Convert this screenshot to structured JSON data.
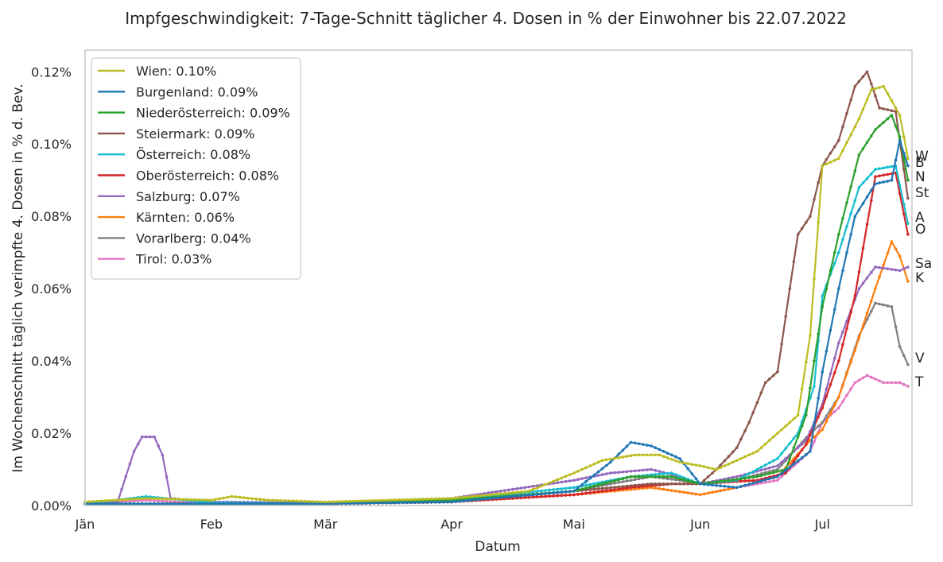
{
  "chart_data": {
    "type": "line",
    "title": "Impfgeschwindigkeit: 7-Tage-Schnitt täglicher 4. Dosen in % der Einwohner bis 22.07.2022",
    "xlabel": "Datum",
    "ylabel": "Im Wochenschnitt täglich verimpfte 4. Dosen in % d. Bev.",
    "x_start": "2022-01-01",
    "x_end": "2022-07-22",
    "xlim": [
      "2022-01-01",
      "2022-07-23"
    ],
    "ylim": [
      0,
      0.126
    ],
    "x_ticks": [
      {
        "date": "2022-01-01",
        "label": "Jän"
      },
      {
        "date": "2022-02-01",
        "label": "Feb"
      },
      {
        "date": "2022-03-01",
        "label": "Mär"
      },
      {
        "date": "2022-04-01",
        "label": "Apr"
      },
      {
        "date": "2022-05-01",
        "label": "Mai"
      },
      {
        "date": "2022-06-01",
        "label": "Jun"
      },
      {
        "date": "2022-07-01",
        "label": "Jul"
      }
    ],
    "y_ticks": [
      {
        "value": 0.0,
        "label": "0.00%"
      },
      {
        "value": 0.02,
        "label": "0.02%"
      },
      {
        "value": 0.04,
        "label": "0.04%"
      },
      {
        "value": 0.06,
        "label": "0.06%"
      },
      {
        "value": 0.08,
        "label": "0.08%"
      },
      {
        "value": 0.1,
        "label": "0.10%"
      },
      {
        "value": 0.12,
        "label": "0.12%"
      }
    ],
    "grid": true,
    "legend_position": "top-left",
    "series": [
      {
        "legend": "Wien: 0.10%",
        "end_label": "W",
        "color": "#bcbd22",
        "points": [
          [
            "2022-01-01",
            0.001
          ],
          [
            "2022-01-16",
            0.002
          ],
          [
            "2022-02-01",
            0.0015
          ],
          [
            "2022-02-06",
            0.0025
          ],
          [
            "2022-02-15",
            0.0015
          ],
          [
            "2022-03-01",
            0.001
          ],
          [
            "2022-04-01",
            0.002
          ],
          [
            "2022-04-20",
            0.004
          ],
          [
            "2022-05-01",
            0.009
          ],
          [
            "2022-05-08",
            0.0125
          ],
          [
            "2022-05-16",
            0.014
          ],
          [
            "2022-05-22",
            0.014
          ],
          [
            "2022-05-27",
            0.012
          ],
          [
            "2022-06-01",
            0.011
          ],
          [
            "2022-06-05",
            0.01
          ],
          [
            "2022-06-10",
            0.0125
          ],
          [
            "2022-06-15",
            0.015
          ],
          [
            "2022-06-20",
            0.02
          ],
          [
            "2022-06-25",
            0.025
          ],
          [
            "2022-06-28",
            0.047
          ],
          [
            "2022-07-01",
            0.094
          ],
          [
            "2022-07-05",
            0.096
          ],
          [
            "2022-07-10",
            0.107
          ],
          [
            "2022-07-13",
            0.115
          ],
          [
            "2022-07-16",
            0.116
          ],
          [
            "2022-07-20",
            0.108
          ],
          [
            "2022-07-22",
            0.096
          ]
        ]
      },
      {
        "legend": "Burgenland: 0.09%",
        "end_label": "B",
        "color": "#1f77b4",
        "points": [
          [
            "2022-01-01",
            0.0005
          ],
          [
            "2022-03-01",
            0.0005
          ],
          [
            "2022-04-01",
            0.001
          ],
          [
            "2022-05-01",
            0.004
          ],
          [
            "2022-05-10",
            0.012
          ],
          [
            "2022-05-15",
            0.0175
          ],
          [
            "2022-05-20",
            0.0165
          ],
          [
            "2022-05-27",
            0.013
          ],
          [
            "2022-06-01",
            0.006
          ],
          [
            "2022-06-10",
            0.005
          ],
          [
            "2022-06-20",
            0.008
          ],
          [
            "2022-06-28",
            0.015
          ],
          [
            "2022-07-01",
            0.037
          ],
          [
            "2022-07-05",
            0.06
          ],
          [
            "2022-07-09",
            0.08
          ],
          [
            "2022-07-14",
            0.089
          ],
          [
            "2022-07-18",
            0.09
          ],
          [
            "2022-07-20",
            0.101
          ],
          [
            "2022-07-22",
            0.094
          ]
        ]
      },
      {
        "legend": "Niederösterreich: 0.09%",
        "end_label": "N",
        "color": "#2ca02c",
        "points": [
          [
            "2022-01-01",
            0.0005
          ],
          [
            "2022-03-01",
            0.0005
          ],
          [
            "2022-04-01",
            0.0015
          ],
          [
            "2022-05-01",
            0.004
          ],
          [
            "2022-05-15",
            0.008
          ],
          [
            "2022-05-25",
            0.008
          ],
          [
            "2022-06-01",
            0.006
          ],
          [
            "2022-06-15",
            0.008
          ],
          [
            "2022-06-22",
            0.01
          ],
          [
            "2022-06-27",
            0.025
          ],
          [
            "2022-07-01",
            0.055
          ],
          [
            "2022-07-05",
            0.075
          ],
          [
            "2022-07-10",
            0.097
          ],
          [
            "2022-07-14",
            0.104
          ],
          [
            "2022-07-18",
            0.108
          ],
          [
            "2022-07-20",
            0.102
          ],
          [
            "2022-07-22",
            0.09
          ]
        ]
      },
      {
        "legend": "Steiermark: 0.09%",
        "end_label": "St",
        "color": "#8c564b",
        "points": [
          [
            "2022-01-01",
            0.0005
          ],
          [
            "2022-03-01",
            0.0005
          ],
          [
            "2022-04-01",
            0.001
          ],
          [
            "2022-05-01",
            0.004
          ],
          [
            "2022-05-20",
            0.006
          ],
          [
            "2022-06-01",
            0.006
          ],
          [
            "2022-06-05",
            0.01
          ],
          [
            "2022-06-10",
            0.016
          ],
          [
            "2022-06-13",
            0.023
          ],
          [
            "2022-06-17",
            0.034
          ],
          [
            "2022-06-20",
            0.037
          ],
          [
            "2022-06-23",
            0.06
          ],
          [
            "2022-06-25",
            0.075
          ],
          [
            "2022-06-28",
            0.08
          ],
          [
            "2022-07-01",
            0.094
          ],
          [
            "2022-07-05",
            0.101
          ],
          [
            "2022-07-09",
            0.116
          ],
          [
            "2022-07-12",
            0.12
          ],
          [
            "2022-07-15",
            0.11
          ],
          [
            "2022-07-19",
            0.109
          ],
          [
            "2022-07-22",
            0.085
          ]
        ]
      },
      {
        "legend": "Österreich: 0.08%",
        "end_label": "A",
        "color": "#17becf",
        "points": [
          [
            "2022-01-01",
            0.0005
          ],
          [
            "2022-01-16",
            0.0025
          ],
          [
            "2022-02-01",
            0.0008
          ],
          [
            "2022-03-01",
            0.0005
          ],
          [
            "2022-04-01",
            0.0015
          ],
          [
            "2022-05-01",
            0.005
          ],
          [
            "2022-05-15",
            0.008
          ],
          [
            "2022-05-25",
            0.009
          ],
          [
            "2022-06-01",
            0.006
          ],
          [
            "2022-06-10",
            0.007
          ],
          [
            "2022-06-15",
            0.01
          ],
          [
            "2022-06-20",
            0.013
          ],
          [
            "2022-06-25",
            0.02
          ],
          [
            "2022-06-29",
            0.033
          ],
          [
            "2022-07-01",
            0.058
          ],
          [
            "2022-07-05",
            0.07
          ],
          [
            "2022-07-10",
            0.088
          ],
          [
            "2022-07-14",
            0.093
          ],
          [
            "2022-07-19",
            0.094
          ],
          [
            "2022-07-22",
            0.078
          ]
        ]
      },
      {
        "legend": "Oberösterreich: 0.08%",
        "end_label": "O",
        "color": "#d62728",
        "points": [
          [
            "2022-01-01",
            0.0005
          ],
          [
            "2022-03-01",
            0.0005
          ],
          [
            "2022-04-01",
            0.001
          ],
          [
            "2022-05-01",
            0.003
          ],
          [
            "2022-05-15",
            0.005
          ],
          [
            "2022-05-25",
            0.006
          ],
          [
            "2022-06-01",
            0.006
          ],
          [
            "2022-06-15",
            0.007
          ],
          [
            "2022-06-22",
            0.009
          ],
          [
            "2022-06-27",
            0.017
          ],
          [
            "2022-07-01",
            0.027
          ],
          [
            "2022-07-05",
            0.04
          ],
          [
            "2022-07-09",
            0.058
          ],
          [
            "2022-07-14",
            0.091
          ],
          [
            "2022-07-19",
            0.092
          ],
          [
            "2022-07-22",
            0.075
          ]
        ]
      },
      {
        "legend": "Salzburg: 0.07%",
        "end_label": "Sa",
        "color": "#9467bd",
        "points": [
          [
            "2022-01-01",
            0.0008
          ],
          [
            "2022-01-09",
            0.001
          ],
          [
            "2022-01-11",
            0.008
          ],
          [
            "2022-01-13",
            0.015
          ],
          [
            "2022-01-15",
            0.019
          ],
          [
            "2022-01-18",
            0.019
          ],
          [
            "2022-01-20",
            0.014
          ],
          [
            "2022-01-22",
            0.002
          ],
          [
            "2022-02-01",
            0.001
          ],
          [
            "2022-03-01",
            0.0008
          ],
          [
            "2022-04-01",
            0.002
          ],
          [
            "2022-05-01",
            0.007
          ],
          [
            "2022-05-10",
            0.009
          ],
          [
            "2022-05-20",
            0.01
          ],
          [
            "2022-05-27",
            0.008
          ],
          [
            "2022-06-01",
            0.006
          ],
          [
            "2022-06-10",
            0.008
          ],
          [
            "2022-06-20",
            0.011
          ],
          [
            "2022-06-27",
            0.018
          ],
          [
            "2022-07-01",
            0.028
          ],
          [
            "2022-07-05",
            0.045
          ],
          [
            "2022-07-10",
            0.06
          ],
          [
            "2022-07-14",
            0.066
          ],
          [
            "2022-07-20",
            0.065
          ],
          [
            "2022-07-22",
            0.066
          ]
        ]
      },
      {
        "legend": "Kärnten: 0.06%",
        "end_label": "K",
        "color": "#ff7f0e",
        "points": [
          [
            "2022-01-01",
            0.0005
          ],
          [
            "2022-03-01",
            0.0005
          ],
          [
            "2022-04-01",
            0.001
          ],
          [
            "2022-05-01",
            0.003
          ],
          [
            "2022-05-20",
            0.005
          ],
          [
            "2022-06-01",
            0.003
          ],
          [
            "2022-06-10",
            0.005
          ],
          [
            "2022-06-20",
            0.008
          ],
          [
            "2022-06-28",
            0.018
          ],
          [
            "2022-07-01",
            0.021
          ],
          [
            "2022-07-05",
            0.03
          ],
          [
            "2022-07-09",
            0.043
          ],
          [
            "2022-07-14",
            0.06
          ],
          [
            "2022-07-18",
            0.073
          ],
          [
            "2022-07-20",
            0.069
          ],
          [
            "2022-07-22",
            0.062
          ]
        ]
      },
      {
        "legend": "Vorarlberg: 0.04%",
        "end_label": "V",
        "color": "#7f7f7f",
        "points": [
          [
            "2022-01-01",
            0.0005
          ],
          [
            "2022-03-01",
            0.0005
          ],
          [
            "2022-04-01",
            0.001
          ],
          [
            "2022-05-01",
            0.004
          ],
          [
            "2022-05-10",
            0.006
          ],
          [
            "2022-05-20",
            0.008
          ],
          [
            "2022-05-27",
            0.007
          ],
          [
            "2022-06-01",
            0.006
          ],
          [
            "2022-06-10",
            0.007
          ],
          [
            "2022-06-20",
            0.01
          ],
          [
            "2022-06-28",
            0.02
          ],
          [
            "2022-07-01",
            0.023
          ],
          [
            "2022-07-05",
            0.03
          ],
          [
            "2022-07-10",
            0.047
          ],
          [
            "2022-07-14",
            0.056
          ],
          [
            "2022-07-18",
            0.055
          ],
          [
            "2022-07-20",
            0.044
          ],
          [
            "2022-07-22",
            0.039
          ]
        ]
      },
      {
        "legend": "Tirol: 0.03%",
        "end_label": "T",
        "color": "#e377c2",
        "points": [
          [
            "2022-01-01",
            0.0005
          ],
          [
            "2022-01-16",
            0.0015
          ],
          [
            "2022-02-01",
            0.0005
          ],
          [
            "2022-03-01",
            0.0005
          ],
          [
            "2022-04-01",
            0.001
          ],
          [
            "2022-05-01",
            0.003
          ],
          [
            "2022-05-20",
            0.005
          ],
          [
            "2022-06-01",
            0.003
          ],
          [
            "2022-06-10",
            0.005
          ],
          [
            "2022-06-20",
            0.007
          ],
          [
            "2022-06-28",
            0.015
          ],
          [
            "2022-07-01",
            0.023
          ],
          [
            "2022-07-05",
            0.027
          ],
          [
            "2022-07-09",
            0.034
          ],
          [
            "2022-07-12",
            0.036
          ],
          [
            "2022-07-16",
            0.034
          ],
          [
            "2022-07-20",
            0.034
          ],
          [
            "2022-07-22",
            0.033
          ]
        ]
      }
    ]
  }
}
